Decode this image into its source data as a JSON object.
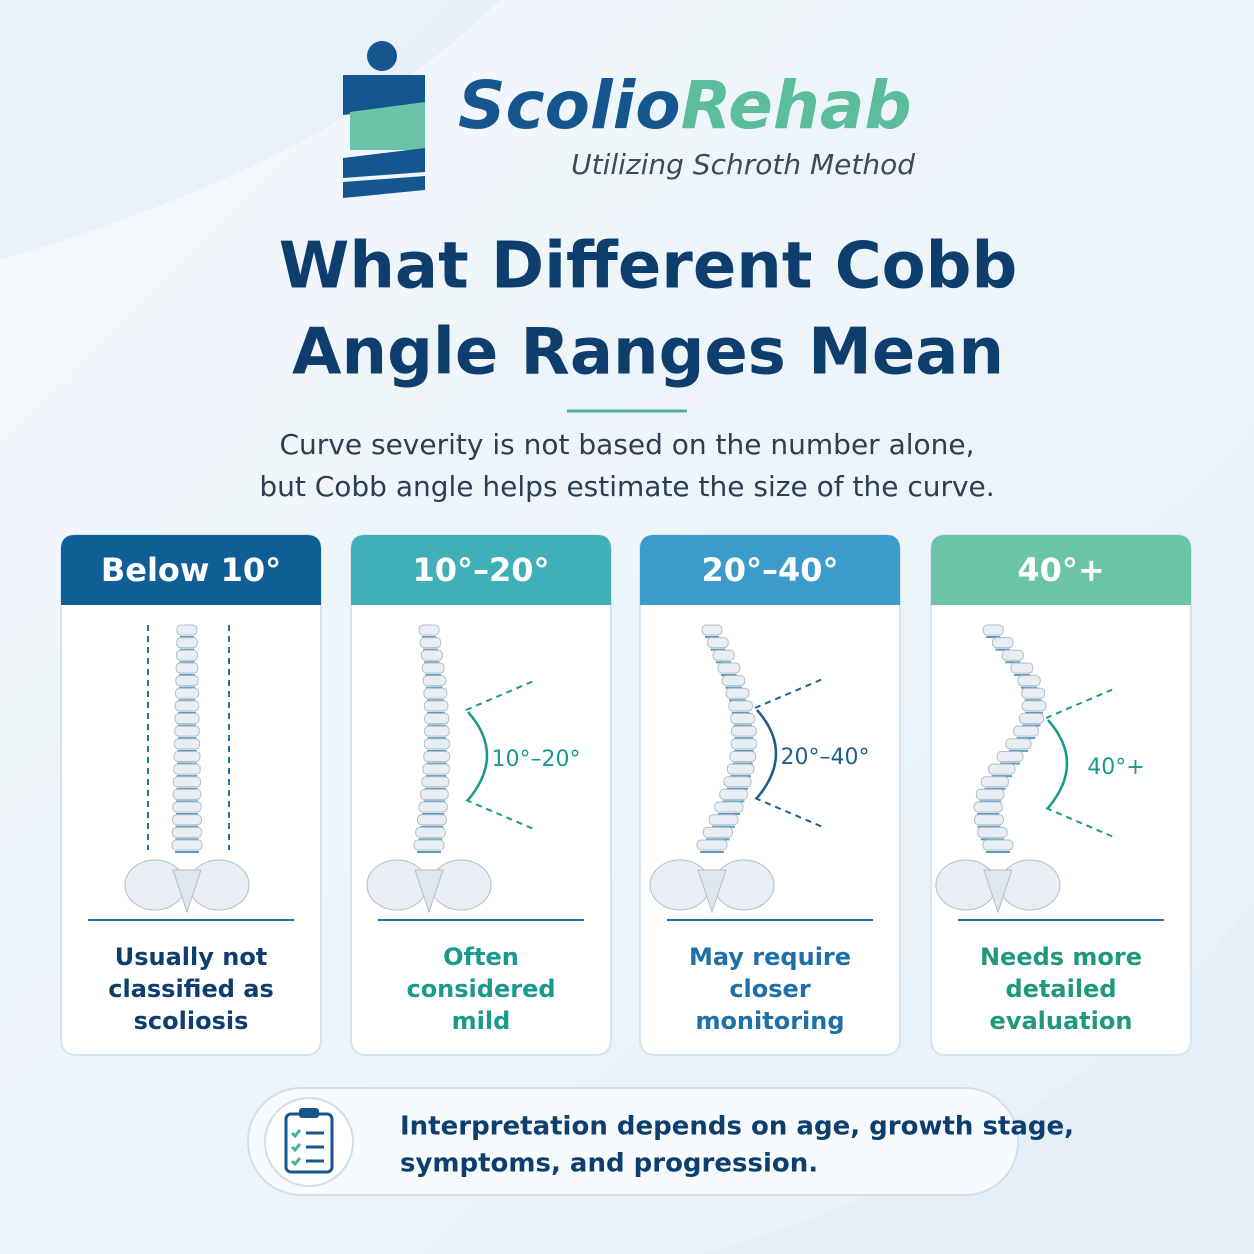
{
  "logo": {
    "name_first": "Scolio",
    "name_second": "Rehab",
    "tagline": "Utilizing Schroth Method"
  },
  "title_lines": [
    "What Different Cobb",
    "Angle Ranges Mean"
  ],
  "subtitle_lines": [
    "Curve severity is not based on the number alone,",
    "but Cobb angle helps estimate the size of the curve."
  ],
  "cards": [
    {
      "header": "Below 10°",
      "description_lines": [
        "Usually not",
        "classified as",
        "scoliosis"
      ]
    },
    {
      "header": "10°–20°",
      "angle_label": "10°–20°",
      "description_lines": [
        "Often",
        "considered",
        "mild"
      ]
    },
    {
      "header": "20°–40°",
      "angle_label": "20°–40°",
      "description_lines": [
        "May require",
        "closer",
        "monitoring"
      ]
    },
    {
      "header": "40°+",
      "angle_label": "40°+",
      "description_lines": [
        "Needs more",
        "detailed",
        "evaluation"
      ]
    }
  ],
  "note_lines": [
    "Interpretation depends on age, growth stage,",
    "symptoms, and progression."
  ]
}
